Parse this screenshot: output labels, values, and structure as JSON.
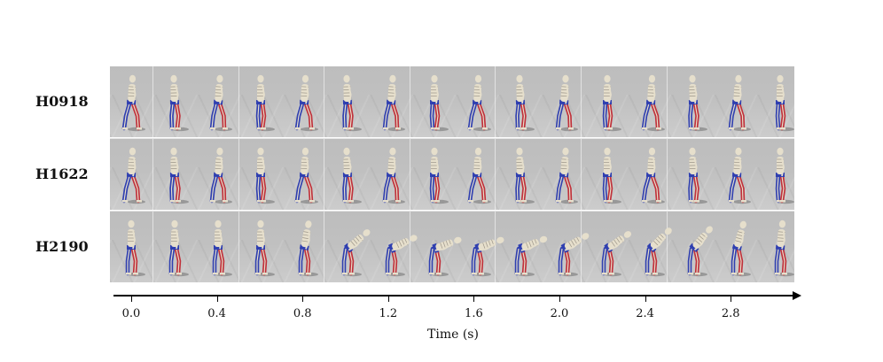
{
  "rows": [
    {
      "label": "H0918",
      "motion": "walk"
    },
    {
      "label": "H1622",
      "motion": "walk"
    },
    {
      "label": "H2190",
      "motion": "bend"
    }
  ],
  "axis": {
    "title": "Time (s)",
    "ticks": [
      "0.0",
      "0.4",
      "0.8",
      "1.2",
      "1.6",
      "2.0",
      "2.4",
      "2.8"
    ]
  },
  "figures_per_row": 16,
  "segments_per_row": 8,
  "colors": {
    "panel_bg": "#c0c0c0",
    "bone": "#e6dfcc",
    "muscle_blue": "#2f3fb0",
    "muscle_red": "#c0303a",
    "shadow": "#6f6f6f"
  }
}
